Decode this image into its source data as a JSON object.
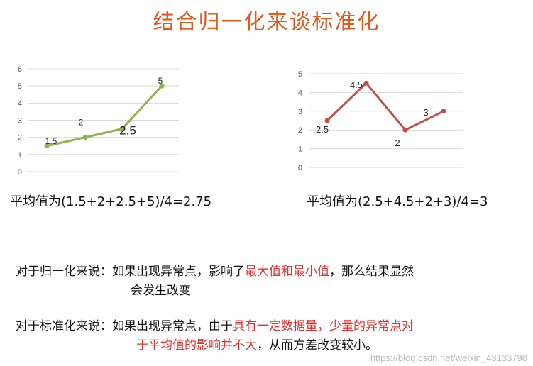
{
  "title": "结合归一化来谈标准化",
  "chart_data": [
    {
      "type": "line",
      "x": [
        1,
        2,
        3,
        4
      ],
      "values": [
        1.5,
        2,
        2.5,
        5
      ],
      "data_labels": [
        "1.5",
        "2",
        "2.5",
        "5"
      ],
      "yticks": [
        "0",
        "1",
        "2",
        "3",
        "4",
        "5",
        "6"
      ],
      "ylim": [
        0,
        6
      ],
      "color": "#8db24e",
      "grid": true
    },
    {
      "type": "line",
      "x": [
        1,
        2,
        3,
        4
      ],
      "values": [
        2.5,
        4.5,
        2,
        3
      ],
      "data_labels": [
        "2.5",
        "4.5",
        "2",
        "3"
      ],
      "yticks": [
        "0",
        "1",
        "2",
        "3",
        "4",
        "5"
      ],
      "ylim": [
        0,
        5
      ],
      "color": "#c0504d",
      "grid": true
    }
  ],
  "formula_left": "平均值为(1.5+2+2.5+5)/4=2.75",
  "formula_right": "平均值为(2.5+4.5+2+3)/4=3",
  "para1": {
    "prefix": "对于归一化来说：如果出现异常点，影响了",
    "highlight": "最大值和最小值",
    "suffix": "，那么结果显然",
    "line2": "会发生改变"
  },
  "para2": {
    "prefix": "对于标准化来说：如果出现异常点，由于",
    "highlight": "具有一定数据量，少量的异常点对",
    "highlight2": "于平均值的影响并不大",
    "suffix": "，从而方差改变较小。"
  },
  "watermark": "https://blog.csdn.net/weixin_43133798"
}
